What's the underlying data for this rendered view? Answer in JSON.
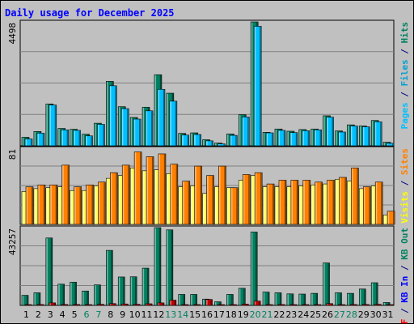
{
  "chart_data": {
    "type": "bar",
    "title": "Daily usage for December 2025",
    "categories": [
      "1",
      "2",
      "3",
      "4",
      "5",
      "6",
      "7",
      "8",
      "9",
      "10",
      "11",
      "12",
      "13",
      "14",
      "15",
      "16",
      "17",
      "18",
      "19",
      "20",
      "21",
      "22",
      "23",
      "24",
      "25",
      "26",
      "27",
      "28",
      "29",
      "30",
      "31"
    ],
    "weekend_days": [
      "6",
      "7",
      "13",
      "14",
      "20",
      "21",
      "27",
      "28"
    ],
    "grid": true,
    "panels": [
      {
        "id": "pages-files-hits",
        "ymax_label": "4498",
        "ymax": 4498,
        "legend": [
          {
            "text": "Pages",
            "color": "#00c0ff"
          },
          {
            "text": " / ",
            "color": "#000080"
          },
          {
            "text": "Files",
            "color": "#00a0d0"
          },
          {
            "text": " / ",
            "color": "#000080"
          },
          {
            "text": "Hits",
            "color": "#008060"
          }
        ],
        "series": [
          {
            "name": "Hits",
            "color": "#008060",
            "values": [
              310,
              520,
              1520,
              630,
              600,
              420,
              820,
              2340,
              1420,
              1030,
              1400,
              2580,
              1910,
              450,
              470,
              220,
              100,
              430,
              1130,
              4498,
              490,
              610,
              530,
              590,
              610,
              1090,
              540,
              760,
              720,
              920,
              130
            ]
          },
          {
            "name": "Files",
            "color": "#00c0ff",
            "values": [
              250,
              460,
              1480,
              580,
              560,
              360,
              780,
              2180,
              1350,
              970,
              1270,
              2050,
              1620,
              390,
              410,
              180,
              70,
              380,
              1050,
              4340,
              470,
              560,
              480,
              550,
              580,
              1040,
              500,
              720,
              690,
              870,
              90
            ]
          }
        ]
      },
      {
        "id": "visits-sites",
        "ymax_label": "81",
        "ymax": 81,
        "legend": [
          {
            "text": "Visits",
            "color": "#ffff00"
          },
          {
            "text": " / ",
            "color": "#000080"
          },
          {
            "text": "Sites",
            "color": "#ff8000"
          }
        ],
        "series": [
          {
            "name": "Visits",
            "color": "#ffff60",
            "values": [
              35,
              38,
              39,
              40,
              36,
              36,
              41,
              49,
              52,
              60,
              57,
              58,
              54,
              40,
              41,
              33,
              40,
              39,
              47,
              52,
              40,
              40,
              40,
              41,
              42,
              43,
              48,
              46,
              38,
              41,
              10
            ]
          },
          {
            "name": "Sites",
            "color": "#ff8000",
            "values": [
              40,
              42,
              42,
              63,
              40,
              42,
              45,
              55,
              63,
              77,
              72,
              75,
              64,
              46,
              62,
              52,
              62,
              39,
              53,
              55,
              43,
              47,
              47,
              47,
              45,
              47,
              50,
              60,
              40,
              45,
              14
            ]
          }
        ]
      },
      {
        "id": "kb-in-out",
        "ymax_label": "43257",
        "ymax": 43257,
        "legend": [
          {
            "text": "KB F",
            "color": "#ff0000"
          },
          {
            "text": " / ",
            "color": "#000080"
          },
          {
            "text": "KB In",
            "color": "#0000ff"
          },
          {
            "text": " / ",
            "color": "#000080"
          },
          {
            "text": "KB Out",
            "color": "#008060"
          }
        ],
        "series": [
          {
            "name": "KB Out",
            "color": "#008060",
            "values": [
              5600,
              7000,
              37500,
              11800,
              12900,
              8000,
              11400,
              30600,
              15800,
              15900,
              20700,
              43257,
              42000,
              6100,
              6100,
              3500,
              2000,
              6100,
              9500,
              40800,
              7400,
              7000,
              6400,
              6300,
              6700,
              23600,
              7000,
              6700,
              9100,
              12600,
              1600
            ]
          },
          {
            "name": "KB F",
            "color": "#c00000",
            "values": [
              400,
              500,
              1400,
              500,
              500,
              400,
              600,
              1000,
              800,
              600,
              900,
              1400,
              2900,
              400,
              400,
              3300,
              200,
              400,
              700,
              2400,
              400,
              500,
              400,
              400,
              400,
              1000,
              400,
              500,
              500,
              600,
              200
            ]
          }
        ]
      }
    ]
  }
}
